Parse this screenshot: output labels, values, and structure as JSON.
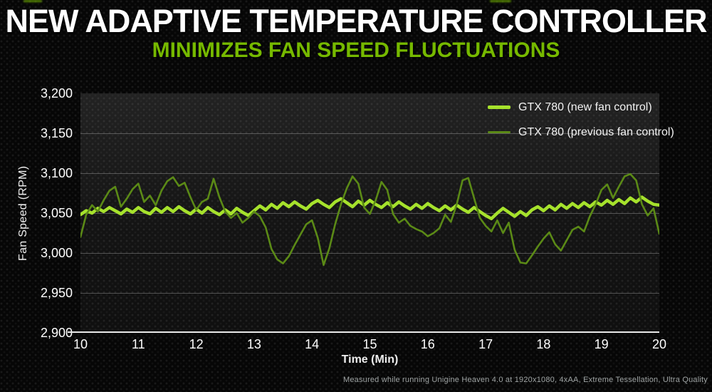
{
  "page": {
    "title": "NEW ADAPTIVE TEMPERATURE CONTROLLER",
    "subtitle": "MINIMIZES FAN SPEED FLUCTUATIONS",
    "footnote": "Measured while running Unigine Heaven 4.0 at 1920x1080, 4xAA, Extreme Tessellation, Ultra Quality",
    "colors": {
      "background": "#060606",
      "title_text": "#ffffff",
      "subtitle_green": "#76b900",
      "new_line_green": "#a6e22c",
      "previous_line_green": "#5b8a16",
      "gridline": "#555555",
      "axis_line": "#e8e8e8"
    }
  },
  "chart_data": {
    "type": "line",
    "xlabel": "Time (Min)",
    "ylabel": "Fan Speed (RPM)",
    "xlim": [
      10,
      20
    ],
    "ylim": [
      2900,
      3200
    ],
    "xticks": [
      10,
      11,
      12,
      13,
      14,
      15,
      16,
      17,
      18,
      19,
      20
    ],
    "yticks": [
      3200,
      3150,
      3100,
      3050,
      3000,
      2950,
      2900
    ],
    "ytick_labels": [
      "3,200",
      "3,150",
      "3,100",
      "3,050",
      "3,000",
      "2,950",
      "2,900"
    ],
    "grid": true,
    "legend_position": "top-right",
    "x_start": 10,
    "x_step": 0.1,
    "series": [
      {
        "name": "GTX 780 (new fan control)",
        "color": "#a6e22c",
        "line_width": 4.5,
        "values": [
          3048,
          3053,
          3050,
          3056,
          3052,
          3057,
          3053,
          3049,
          3055,
          3051,
          3057,
          3052,
          3049,
          3056,
          3051,
          3057,
          3052,
          3058,
          3053,
          3049,
          3055,
          3050,
          3057,
          3052,
          3048,
          3054,
          3049,
          3056,
          3051,
          3047,
          3053,
          3059,
          3054,
          3061,
          3056,
          3063,
          3058,
          3064,
          3059,
          3055,
          3062,
          3066,
          3061,
          3057,
          3064,
          3068,
          3063,
          3058,
          3065,
          3060,
          3066,
          3061,
          3057,
          3063,
          3058,
          3064,
          3059,
          3055,
          3061,
          3056,
          3062,
          3057,
          3053,
          3059,
          3054,
          3060,
          3055,
          3051,
          3057,
          3052,
          3047,
          3043,
          3050,
          3056,
          3051,
          3046,
          3052,
          3047,
          3054,
          3058,
          3053,
          3059,
          3054,
          3061,
          3056,
          3062,
          3057,
          3063,
          3058,
          3064,
          3060,
          3066,
          3061,
          3067,
          3062,
          3069,
          3064,
          3070,
          3065,
          3061,
          3060
        ]
      },
      {
        "name": "GTX 780 (previous fan control)",
        "color": "#5b8a16",
        "line_width": 2.6,
        "values": [
          3020,
          3048,
          3060,
          3052,
          3066,
          3078,
          3083,
          3058,
          3068,
          3080,
          3087,
          3064,
          3072,
          3060,
          3078,
          3090,
          3095,
          3084,
          3088,
          3070,
          3054,
          3064,
          3068,
          3093,
          3070,
          3052,
          3044,
          3050,
          3038,
          3044,
          3052,
          3046,
          3032,
          3005,
          2992,
          2987,
          2996,
          3010,
          3023,
          3036,
          3041,
          3019,
          2985,
          3006,
          3036,
          3061,
          3081,
          3096,
          3087,
          3057,
          3049,
          3066,
          3089,
          3079,
          3049,
          3038,
          3043,
          3034,
          3030,
          3027,
          3021,
          3025,
          3031,
          3048,
          3039,
          3061,
          3091,
          3094,
          3069,
          3044,
          3034,
          3027,
          3041,
          3025,
          3038,
          3004,
          2988,
          2987,
          2997,
          3008,
          3018,
          3026,
          3011,
          3003,
          3016,
          3029,
          3033,
          3027,
          3046,
          3061,
          3079,
          3086,
          3069,
          3083,
          3096,
          3099,
          3091,
          3061,
          3047,
          3056,
          3024
        ]
      }
    ]
  }
}
